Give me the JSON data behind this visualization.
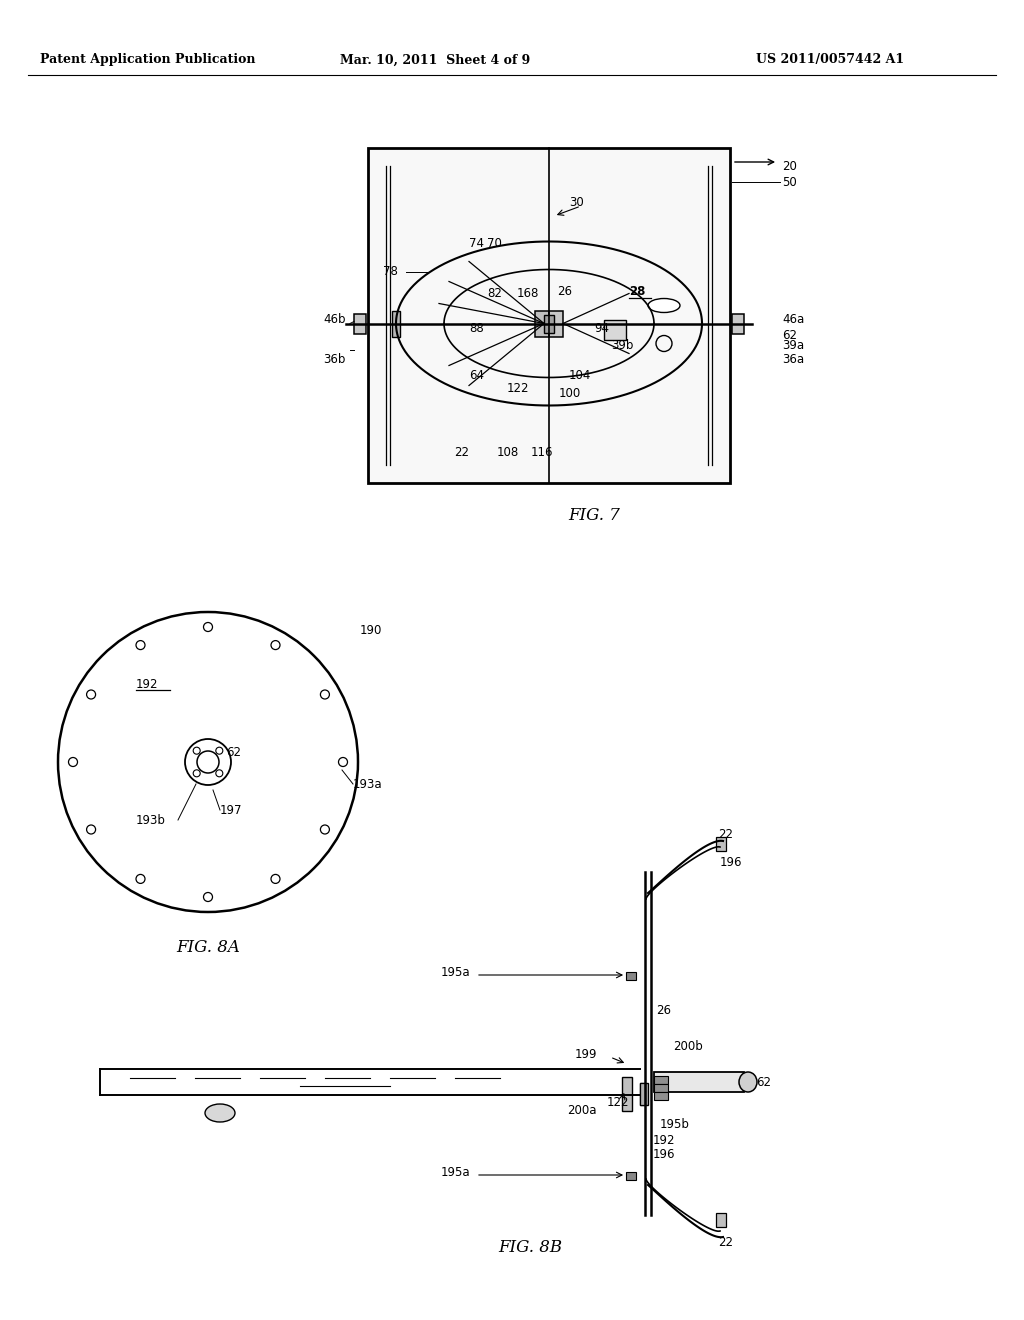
{
  "background_color": "#ffffff",
  "header_text": "Patent Application Publication",
  "header_date": "Mar. 10, 2011  Sheet 4 of 9",
  "header_patent": "US 2011/0057442 A1",
  "fig7_label": "FIG. 7",
  "fig8a_label": "FIG. 8A",
  "fig8b_label": "FIG. 8B",
  "line_color": "#000000",
  "text_color": "#000000"
}
